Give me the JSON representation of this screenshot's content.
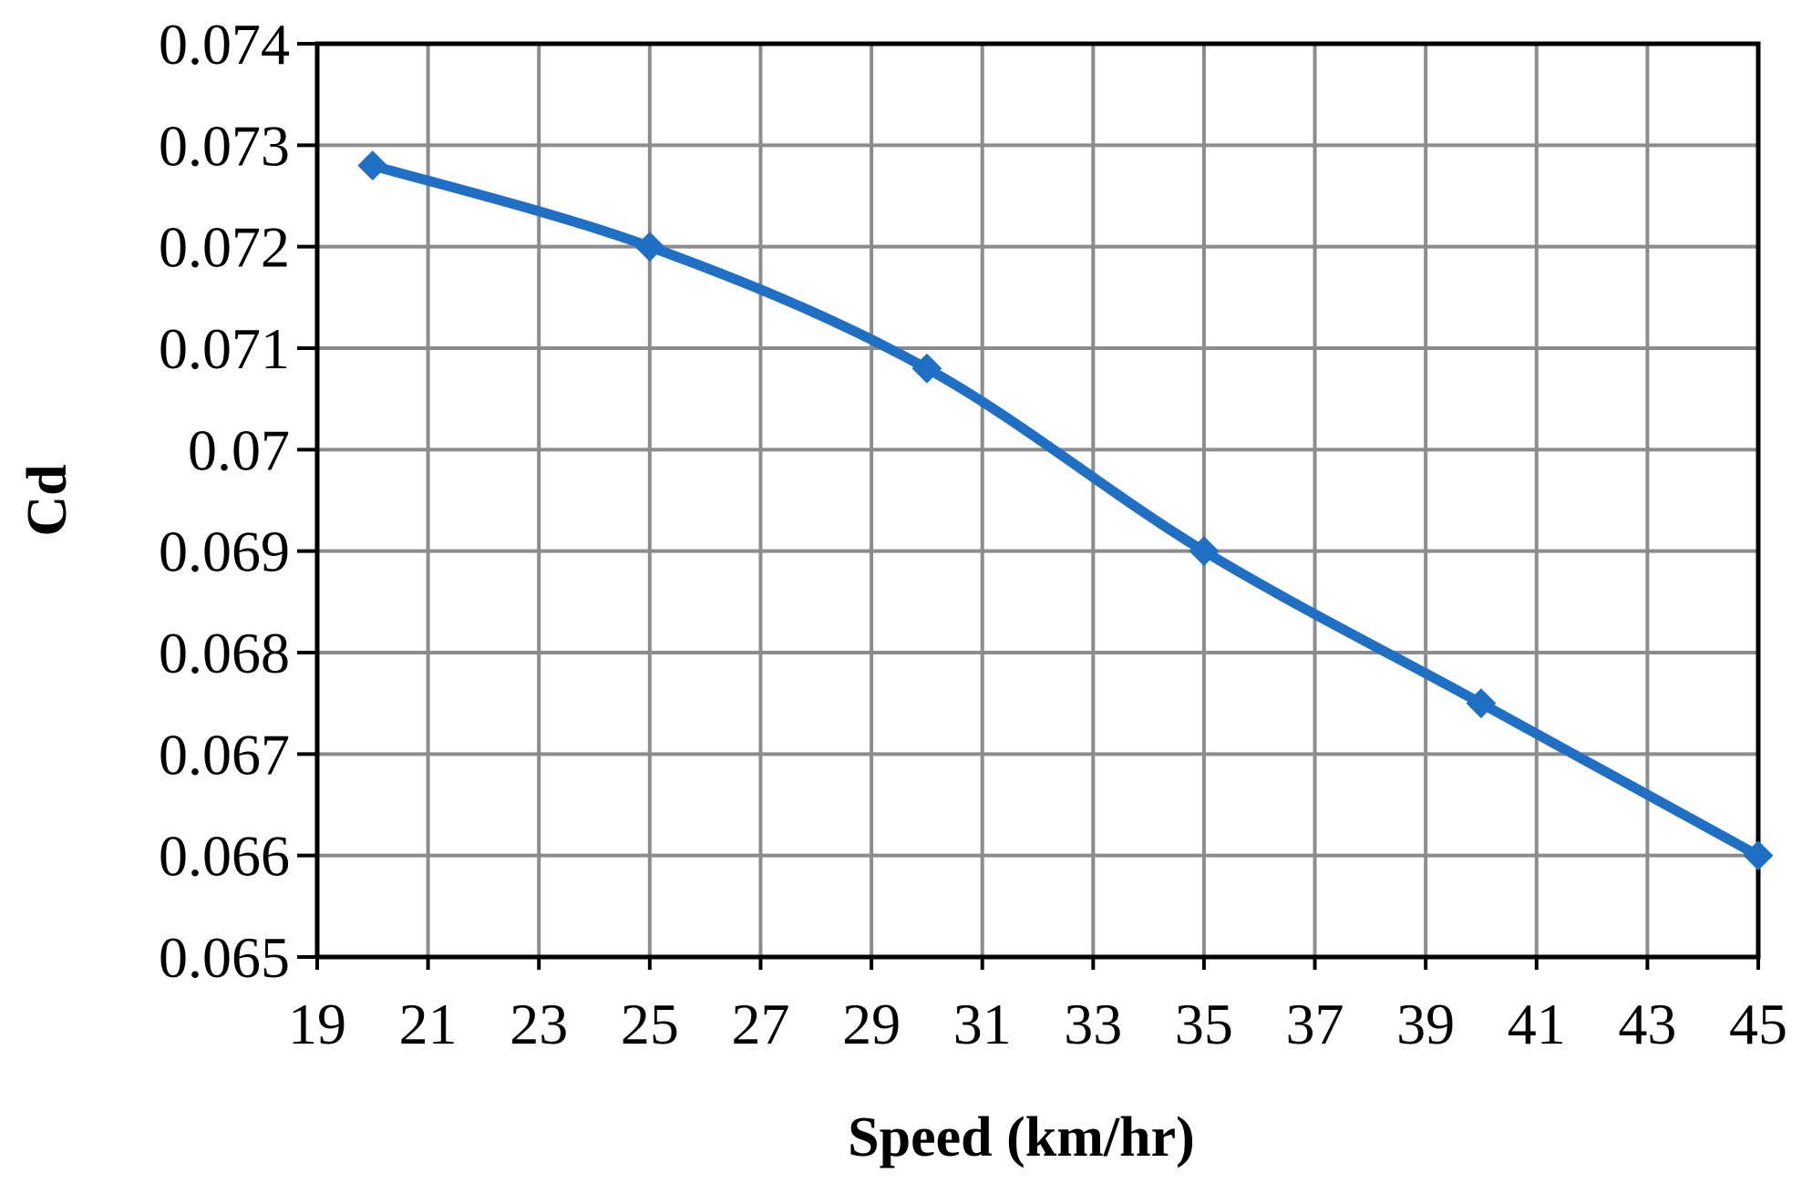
{
  "chart_data": {
    "type": "line",
    "title": "",
    "xlabel": "Speed (km/hr)",
    "ylabel": "Cd",
    "xlim": [
      19,
      45
    ],
    "ylim": [
      0.065,
      0.074
    ],
    "x_ticks": [
      19,
      21,
      23,
      25,
      27,
      29,
      31,
      33,
      35,
      37,
      39,
      41,
      43,
      45
    ],
    "x_tick_labels": [
      "19",
      "21",
      "23",
      "25",
      "27",
      "29",
      "31",
      "33",
      "35",
      "37",
      "39",
      "41",
      "43",
      "45"
    ],
    "y_ticks": [
      0.065,
      0.066,
      0.067,
      0.068,
      0.069,
      0.07,
      0.071,
      0.072,
      0.073,
      0.074
    ],
    "y_tick_labels": [
      "0.065",
      "0.066",
      "0.067",
      "0.068",
      "0.069",
      "0.07",
      "0.071",
      "0.072",
      "0.073",
      "0.074"
    ],
    "grid": true,
    "legend": "none",
    "marker": "diamond",
    "smooth": true,
    "series": [
      {
        "color": "#1f6fc5",
        "x": [
          20,
          25,
          30,
          35,
          40,
          45
        ],
        "y": [
          0.0728,
          0.072,
          0.0708,
          0.069,
          0.0675,
          0.066
        ]
      }
    ]
  }
}
